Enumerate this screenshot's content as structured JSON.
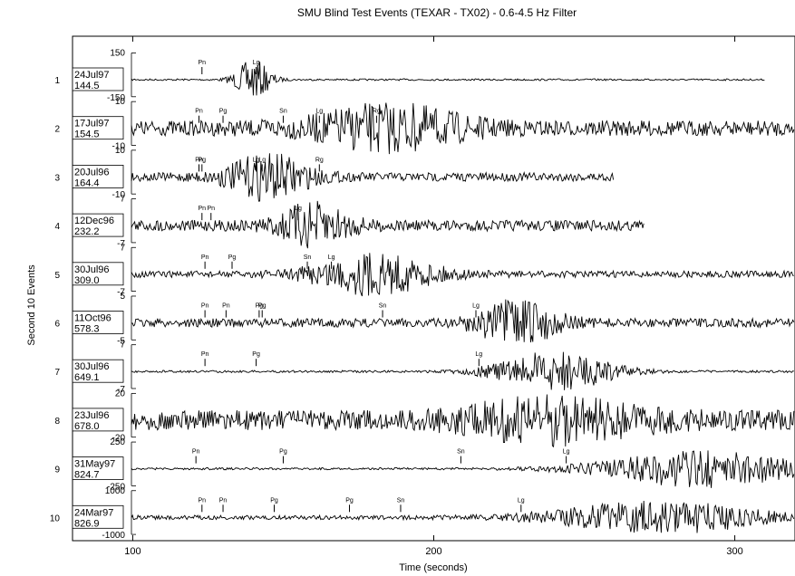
{
  "chart_data": {
    "type": "line",
    "title": "SMU Blind Test Events (TEXAR - TX02) - 0.6-4.5 Hz Filter",
    "xlabel": "Time (seconds)",
    "ylabel": "Second 10 Events",
    "xlim": [
      80,
      320
    ],
    "xticks": [
      100,
      200,
      300
    ],
    "traces": [
      {
        "index": "1",
        "date": "24Jul97",
        "dist": "144.5",
        "ytop": "150",
        "ybot": "-150",
        "start": 80,
        "end": 310,
        "noise": 0.04,
        "burst": {
          "at": 140,
          "amp": 0.9,
          "width": 6
        },
        "phases": [
          {
            "label": "Pn",
            "t": 123
          },
          {
            "label": "Lg",
            "t": 141
          }
        ]
      },
      {
        "index": "2",
        "date": "17Jul97",
        "dist": "154.5",
        "ytop": "10",
        "ybot": "-10",
        "start": 80,
        "end": 320,
        "noise": 0.35,
        "burst": {
          "at": 185,
          "amp": 0.9,
          "width": 25
        },
        "phases": [
          {
            "label": "Pn",
            "t": 122
          },
          {
            "label": "Pg",
            "t": 130
          },
          {
            "label": "Sn",
            "t": 150
          },
          {
            "label": "Lg",
            "t": 162
          },
          {
            "label": "Rg",
            "t": 181
          }
        ]
      },
      {
        "index": "3",
        "date": "20Jul96",
        "dist": "164.4",
        "ytop": "10",
        "ybot": "-10",
        "start": 80,
        "end": 260,
        "noise": 0.2,
        "burst": {
          "at": 145,
          "amp": 0.95,
          "width": 14
        },
        "phases": [
          {
            "label": "Pn",
            "t": 122
          },
          {
            "label": "Lg",
            "t": 143
          },
          {
            "label": "Pg",
            "t": 123
          },
          {
            "label": "Lg",
            "t": 141
          },
          {
            "label": "Rg",
            "t": 162
          }
        ]
      },
      {
        "index": "4",
        "date": "12Dec96",
        "dist": "232.2",
        "ytop": "7",
        "ybot": "-7",
        "start": 80,
        "end": 270,
        "noise": 0.25,
        "burst": {
          "at": 160,
          "amp": 0.9,
          "width": 12
        },
        "phases": [
          {
            "label": "Pn",
            "t": 123
          },
          {
            "label": "Pn",
            "t": 126
          },
          {
            "label": "Lg",
            "t": 155
          }
        ]
      },
      {
        "index": "5",
        "date": "30Jul96",
        "dist": "309.0",
        "ytop": "7",
        "ybot": "-7",
        "start": 80,
        "end": 320,
        "noise": 0.15,
        "burst": {
          "at": 180,
          "amp": 0.9,
          "width": 20
        },
        "phases": [
          {
            "label": "Pn",
            "t": 124
          },
          {
            "label": "Pg",
            "t": 133
          },
          {
            "label": "Sn",
            "t": 158
          },
          {
            "label": "Lg",
            "t": 166
          }
        ]
      },
      {
        "index": "6",
        "date": "11Oct96",
        "dist": "578.3",
        "ytop": "5",
        "ybot": "-5",
        "start": 80,
        "end": 320,
        "noise": 0.2,
        "burst": {
          "at": 228,
          "amp": 0.95,
          "width": 14
        },
        "phases": [
          {
            "label": "Pn",
            "t": 124
          },
          {
            "label": "Pn",
            "t": 131
          },
          {
            "label": "Pg",
            "t": 142
          },
          {
            "label": "Pg",
            "t": 143
          },
          {
            "label": "Sn",
            "t": 183
          },
          {
            "label": "Lg",
            "t": 214
          }
        ]
      },
      {
        "index": "7",
        "date": "30Jul96",
        "dist": "649.1",
        "ytop": "7",
        "ybot": "-7",
        "start": 80,
        "end": 320,
        "noise": 0.05,
        "burst": {
          "at": 240,
          "amp": 0.9,
          "width": 20
        },
        "phases": [
          {
            "label": "Pn",
            "t": 124
          },
          {
            "label": "Pg",
            "t": 141
          },
          {
            "label": "Lg",
            "t": 215
          }
        ]
      },
      {
        "index": "8",
        "date": "23Jul96",
        "dist": "678.0",
        "ytop": "20",
        "ybot": "-20",
        "start": 80,
        "end": 320,
        "noise": 0.45,
        "burst": {
          "at": 240,
          "amp": 0.8,
          "width": 30
        },
        "phases": []
      },
      {
        "index": "9",
        "date": "31May97",
        "dist": "824.7",
        "ytop": "250",
        "ybot": "-250",
        "start": 80,
        "end": 320,
        "noise": 0.05,
        "burst": {
          "at": 290,
          "amp": 0.85,
          "width": 35
        },
        "phases": [
          {
            "label": "Pn",
            "t": 121
          },
          {
            "label": "Pg",
            "t": 150
          },
          {
            "label": "Sn",
            "t": 209
          },
          {
            "label": "Lg",
            "t": 244
          }
        ]
      },
      {
        "index": "10",
        "date": "24Mar97",
        "dist": "826.9",
        "ytop": "1000",
        "ybot": "-1000",
        "start": 80,
        "end": 320,
        "noise": 0.1,
        "burst": {
          "at": 275,
          "amp": 0.7,
          "width": 35
        },
        "phases": [
          {
            "label": "Pn",
            "t": 123
          },
          {
            "label": "Pn",
            "t": 130
          },
          {
            "label": "Pg",
            "t": 147
          },
          {
            "label": "Pg",
            "t": 172
          },
          {
            "label": "Sn",
            "t": 189
          },
          {
            "label": "Lg",
            "t": 229
          }
        ]
      }
    ]
  }
}
